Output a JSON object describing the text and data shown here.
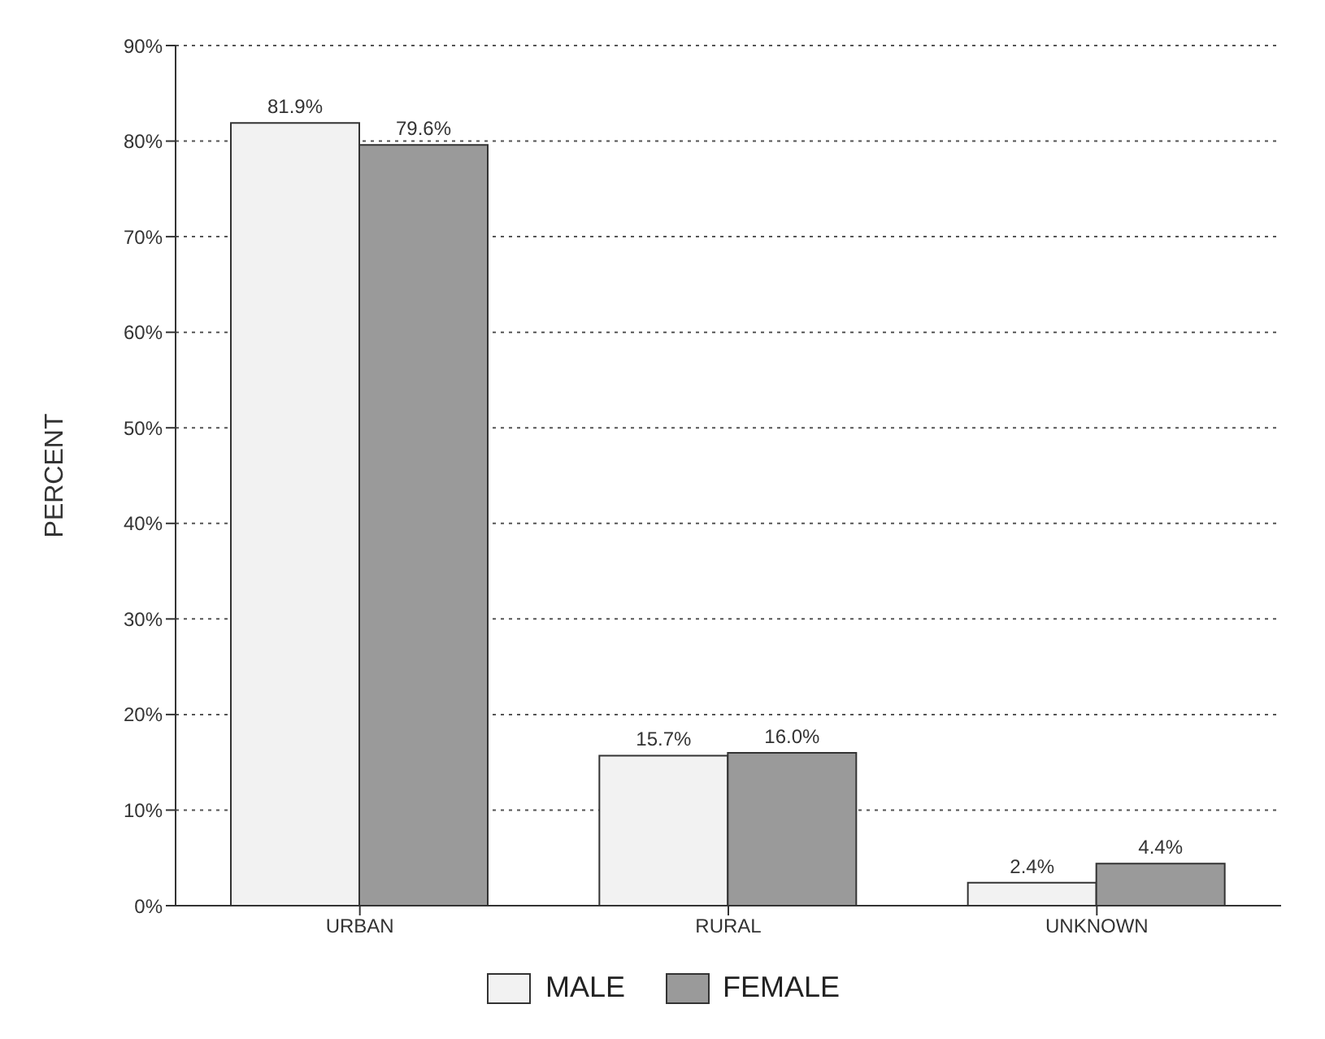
{
  "chart_data": {
    "type": "bar",
    "ylabel": "PERCENT",
    "categories": [
      "URBAN",
      "RURAL",
      "UNKNOWN"
    ],
    "series": [
      {
        "name": "MALE",
        "color": "#f2f2f2",
        "values": [
          81.9,
          15.7,
          2.4
        ],
        "value_labels": [
          "81.9%",
          "15.7%",
          "2.4%"
        ]
      },
      {
        "name": "FEMALE",
        "color": "#9a9a9a",
        "values": [
          79.6,
          16.0,
          4.4
        ],
        "value_labels": [
          "79.6%",
          "16.0%",
          "4.4%"
        ]
      }
    ],
    "ylim": [
      0,
      90
    ],
    "yticks": [
      {
        "value": 0,
        "label": "0%"
      },
      {
        "value": 10,
        "label": "10%"
      },
      {
        "value": 20,
        "label": "20%"
      },
      {
        "value": 30,
        "label": "30%"
      },
      {
        "value": 40,
        "label": "40%"
      },
      {
        "value": 50,
        "label": "50%"
      },
      {
        "value": 60,
        "label": "60%"
      },
      {
        "value": 70,
        "label": "70%"
      },
      {
        "value": 80,
        "label": "80%"
      },
      {
        "value": 90,
        "label": "90%"
      }
    ],
    "grid": "y",
    "legend": "bottom"
  }
}
